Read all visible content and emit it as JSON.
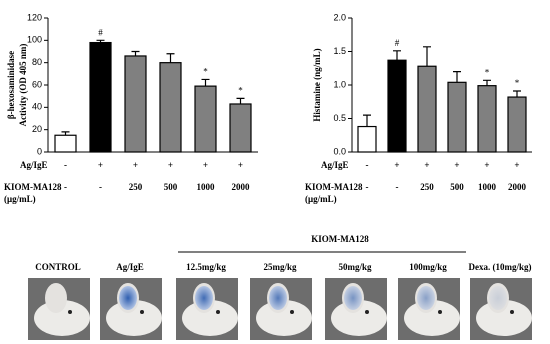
{
  "chart_data": [
    {
      "type": "bar",
      "ylabel": [
        "β-hexosaminidase",
        "Activity (OD 405 nm)"
      ],
      "values": [
        15,
        98,
        86,
        80,
        59,
        43
      ],
      "errors": [
        3,
        2,
        4,
        8,
        6,
        5
      ],
      "colors": [
        "#ffffff",
        "#000000",
        "#808080",
        "#808080",
        "#808080",
        "#808080"
      ],
      "value_markers": [
        null,
        "#",
        null,
        null,
        "*",
        "*"
      ],
      "ylim": [
        0,
        120
      ],
      "yticks": [
        0,
        20,
        40,
        60,
        80,
        100,
        120
      ],
      "conditions": [
        {
          "label": [
            "Ag/IgE"
          ],
          "values": [
            "-",
            "+",
            "+",
            "+",
            "+",
            "+"
          ]
        },
        {
          "label": [
            "KIOM-MA128",
            "(μg/mL)"
          ],
          "values": [
            "-",
            "-",
            "250",
            "500",
            "1000",
            "2000"
          ]
        }
      ]
    },
    {
      "type": "bar",
      "ylabel": [
        "Histamine (ng/mL)"
      ],
      "values": [
        0.38,
        1.37,
        1.28,
        1.04,
        0.99,
        0.82
      ],
      "errors": [
        0.17,
        0.14,
        0.29,
        0.16,
        0.08,
        0.09
      ],
      "colors": [
        "#ffffff",
        "#000000",
        "#808080",
        "#808080",
        "#808080",
        "#808080"
      ],
      "value_markers": [
        null,
        "#",
        null,
        null,
        "*",
        "*"
      ],
      "ylim": [
        0,
        2
      ],
      "yticks": [
        {
          "value": 0,
          "label": "0.0"
        },
        0.5,
        {
          "value": 1,
          "label": "1.0"
        },
        1.5,
        {
          "value": 2,
          "label": "2.0"
        }
      ],
      "conditions": [
        {
          "label": [
            "Ag/IgE"
          ],
          "values": [
            "-",
            "+",
            "+",
            "+",
            "+",
            "+"
          ]
        },
        {
          "label": [
            "KIOM-MA128",
            "(μg/mL)"
          ],
          "values": [
            "-",
            "-",
            "250",
            "500",
            "1000",
            "2000"
          ]
        }
      ]
    }
  ],
  "photos": {
    "group_label": "KIOM-MA128",
    "labels": [
      "CONTROL",
      "Ag/IgE",
      "12.5mg/kg",
      "25mg/kg",
      "50mg/kg",
      "100mg/kg",
      "Dexa. (10mg/kg)"
    ]
  }
}
